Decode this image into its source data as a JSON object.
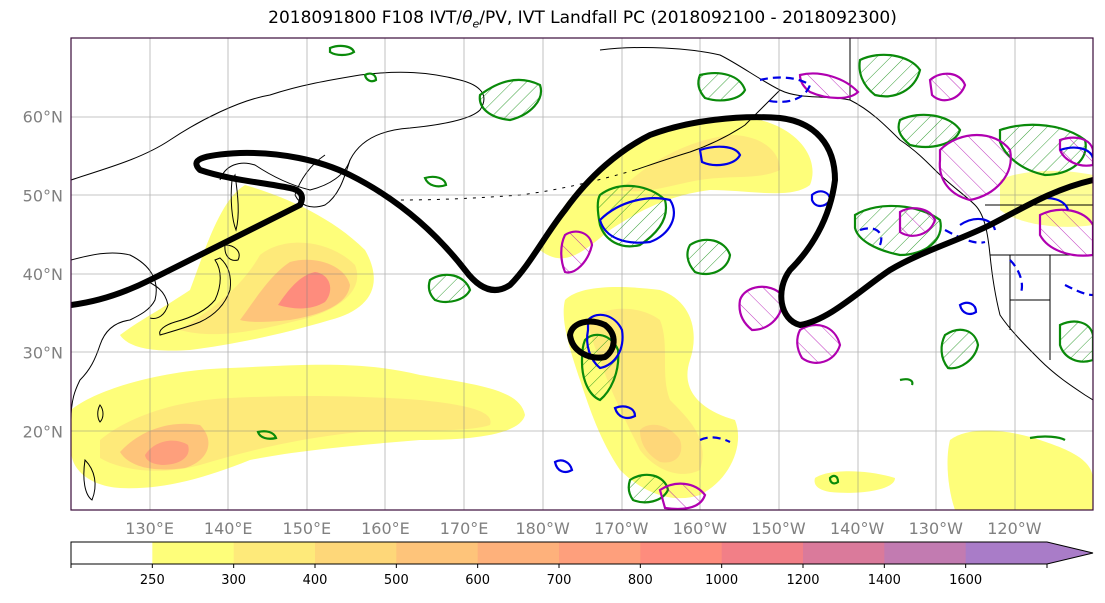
{
  "title": {
    "prefix": "2018091800 F108 IVT/",
    "theta": "θ",
    "theta_sub": "e",
    "suffix": "/PV, IVT Landfall PC (2018092100 - 2018092300)"
  },
  "map": {
    "projection": "plate-carree",
    "lon_range_deg_east": [
      120,
      250
    ],
    "lat_range_deg_north": [
      10,
      70
    ],
    "gridlines": true,
    "lat_labels": [
      "60°N",
      "50°N",
      "40°N",
      "30°N",
      "20°N"
    ],
    "lat_values": [
      60,
      50,
      40,
      30,
      20
    ],
    "lon_labels": [
      "130°E",
      "140°E",
      "150°E",
      "160°E",
      "170°E",
      "180°W",
      "170°W",
      "160°W",
      "150°W",
      "140°W",
      "130°W",
      "120°W"
    ],
    "lon_values": [
      130,
      140,
      150,
      160,
      170,
      180,
      190,
      200,
      210,
      220,
      230,
      240
    ],
    "fields": [
      {
        "name": "IVT",
        "style": "filled contours",
        "units_implied": "kg m-1 s-1"
      },
      {
        "name": "pv-1.5",
        "style": "thick black contour"
      },
      {
        "name": "theta-e",
        "style": "green contours with hatching"
      },
      {
        "name": "pv-positive",
        "style": "magenta contours with hatching"
      },
      {
        "name": "pv-negative",
        "style": "blue contours (solid and dashed)"
      }
    ]
  },
  "colorbar": {
    "ticks": [
      "250",
      "300",
      "400",
      "500",
      "600",
      "700",
      "800",
      "1000",
      "1200",
      "1400",
      "1600"
    ],
    "colors": [
      "#ffffff",
      "#fefe7a",
      "#feea7a",
      "#fed779",
      "#fec47a",
      "#feb17b",
      "#fe9f7c",
      "#fe8c7d",
      "#f27f87",
      "#da7a9b",
      "#c27bb1",
      "#a97cc8"
    ],
    "extend": "max"
  }
}
